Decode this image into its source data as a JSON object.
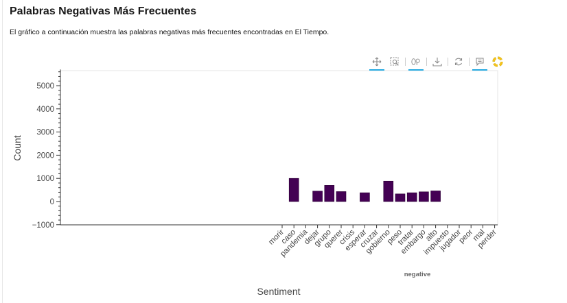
{
  "page": {
    "title": "Palabras Negativas Más Frecuentes",
    "description": "El gráfico a continuación muestra las palabras negativas más frecuentes encontradas en El Tiempo."
  },
  "toolbar": {
    "tools": [
      "pan-icon",
      "box-zoom-icon",
      "wheel-zoom-icon",
      "save-icon",
      "reset-icon",
      "hover-icon",
      "bokeh-logo-icon"
    ]
  },
  "chart_data": {
    "type": "bar",
    "categories": [
      "morir",
      "caso",
      "pandemia",
      "dejar",
      "grupo",
      "querer",
      "crisis",
      "esperar",
      "cruzar",
      "gobierno",
      "peso",
      "tratar",
      "embargo",
      "alto",
      "impuesto",
      "jugador",
      "peor",
      "mal",
      "perder"
    ],
    "values": [
      0,
      1000,
      0,
      450,
      700,
      430,
      0,
      380,
      0,
      880,
      330,
      380,
      420,
      460,
      0,
      0,
      0,
      0,
      0
    ],
    "series_name": "negative",
    "xlabel": "Sentiment",
    "ylabel": "Count",
    "ylim": [
      -1000,
      5700
    ],
    "yticks": [
      -1000,
      0,
      1000,
      2000,
      3000,
      4000,
      5000
    ],
    "bar_color": "#440154",
    "grid": false
  }
}
